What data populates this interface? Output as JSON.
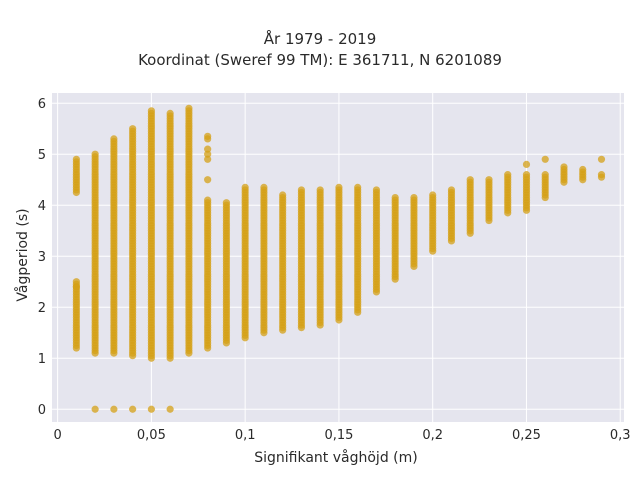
{
  "chart_data": {
    "type": "scatter",
    "title": "År 1979 - 2019",
    "subtitle": "Koordinat (Sweref 99 TM): E 361711, N 6201089",
    "xlabel": "Signifikant våghöjd (m)",
    "ylabel": "Vågperiod (s)",
    "xlim": [
      -0.003,
      0.302
    ],
    "ylim": [
      -0.25,
      6.2
    ],
    "xticks": [
      0,
      0.05,
      0.1,
      0.15,
      0.2,
      0.25,
      0.3
    ],
    "xtick_labels": [
      "0",
      "0,05",
      "0,1",
      "0,15",
      "0,2",
      "0,25",
      "0,3"
    ],
    "yticks": [
      0,
      1,
      2,
      3,
      4,
      5,
      6
    ],
    "ytick_labels": [
      "0",
      "1",
      "2",
      "3",
      "4",
      "5",
      "6"
    ],
    "grid": true,
    "marker_color": "#D4A017",
    "plot_background": "#E5E5EE",
    "columns": [
      {
        "x": 0.01,
        "ymin": 1.2,
        "ymax": 4.9,
        "gap": [
          2.5,
          4.2
        ],
        "extra": [
          2.4
        ]
      },
      {
        "x": 0.02,
        "ymin": 1.1,
        "ymax": 5.0,
        "extra": [
          0
        ]
      },
      {
        "x": 0.03,
        "ymin": 1.1,
        "ymax": 5.3,
        "extra": [
          0
        ]
      },
      {
        "x": 0.04,
        "ymin": 1.05,
        "ymax": 5.5,
        "extra": [
          0
        ]
      },
      {
        "x": 0.05,
        "ymin": 1.0,
        "ymax": 5.85,
        "extra": [
          0
        ]
      },
      {
        "x": 0.06,
        "ymin": 1.0,
        "ymax": 5.8,
        "extra": [
          0
        ]
      },
      {
        "x": 0.07,
        "ymin": 1.1,
        "ymax": 5.9
      },
      {
        "x": 0.08,
        "ymin": 1.2,
        "ymax": 4.1,
        "extra": [
          4.5,
          4.9,
          5.0,
          5.1,
          5.3,
          5.35
        ]
      },
      {
        "x": 0.09,
        "ymin": 1.3,
        "ymax": 4.05
      },
      {
        "x": 0.1,
        "ymin": 1.4,
        "ymax": 4.35
      },
      {
        "x": 0.11,
        "ymin": 1.5,
        "ymax": 4.35
      },
      {
        "x": 0.12,
        "ymin": 1.55,
        "ymax": 4.2
      },
      {
        "x": 0.13,
        "ymin": 1.6,
        "ymax": 4.3
      },
      {
        "x": 0.14,
        "ymin": 1.65,
        "ymax": 4.3
      },
      {
        "x": 0.15,
        "ymin": 1.75,
        "ymax": 4.35
      },
      {
        "x": 0.16,
        "ymin": 1.9,
        "ymax": 4.35
      },
      {
        "x": 0.17,
        "ymin": 2.3,
        "ymax": 4.3
      },
      {
        "x": 0.18,
        "ymin": 2.55,
        "ymax": 4.15
      },
      {
        "x": 0.19,
        "ymin": 2.8,
        "ymax": 4.15
      },
      {
        "x": 0.2,
        "ymin": 3.1,
        "ymax": 4.2
      },
      {
        "x": 0.21,
        "ymin": 3.3,
        "ymax": 4.3
      },
      {
        "x": 0.22,
        "ymin": 3.45,
        "ymax": 4.5
      },
      {
        "x": 0.23,
        "ymin": 3.7,
        "ymax": 4.5
      },
      {
        "x": 0.24,
        "ymin": 3.85,
        "ymax": 4.6
      },
      {
        "x": 0.25,
        "ymin": 3.9,
        "ymax": 4.6,
        "extra": [
          4.8
        ]
      },
      {
        "x": 0.26,
        "ymin": 4.15,
        "ymax": 4.6,
        "extra": [
          4.9
        ]
      },
      {
        "x": 0.27,
        "ymin": 4.45,
        "ymax": 4.75
      },
      {
        "x": 0.28,
        "ymin": 4.5,
        "ymax": 4.7
      },
      {
        "x": 0.29,
        "ymin": 4.55,
        "ymax": 4.6,
        "extra": [
          4.9
        ]
      }
    ]
  }
}
